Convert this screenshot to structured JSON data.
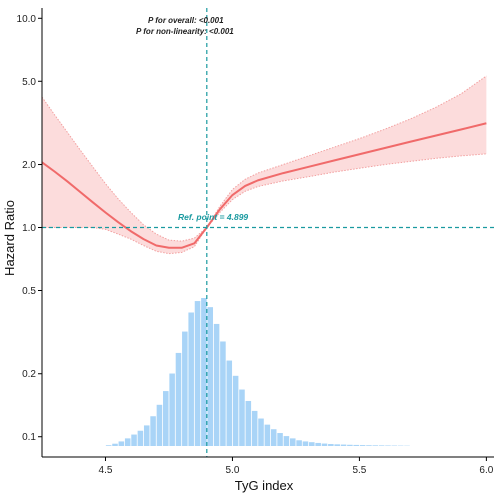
{
  "chart_data": {
    "type": "line",
    "xlabel": "TyG index",
    "ylabel": "Hazard Ratio",
    "xlim": [
      4.25,
      6.03
    ],
    "ylim": [
      0.08,
      11.2
    ],
    "y_scale": "log",
    "x_ticks": [
      4.5,
      5.0,
      5.5,
      6.0
    ],
    "x_tick_labels": [
      "4.5",
      "5.0",
      "5.5",
      "6.0"
    ],
    "y_ticks": [
      0.1,
      0.2,
      0.5,
      1.0,
      2.0,
      5.0,
      10.0
    ],
    "y_tick_labels": [
      "0.1",
      "0.2",
      "0.5",
      "1.0",
      "2.0",
      "5.0",
      "10.0"
    ],
    "annotations": {
      "p_overall": "P for overall: <0.001",
      "p_nonlinear": "P for non-linearity: <0.001",
      "ref_point": "Ref. point = 4.899"
    },
    "reference": {
      "x": 4.899,
      "y": 1.0
    },
    "colors": {
      "curve": "#f06a6a",
      "band_fill": "#fcdcdc",
      "band_edge": "#f2a0a0",
      "reference_line": "#1a9aa0",
      "histogram": "#a9d4f7"
    },
    "series": [
      {
        "x": [
          4.25,
          4.3,
          4.35,
          4.4,
          4.45,
          4.5,
          4.55,
          4.6,
          4.65,
          4.7,
          4.75,
          4.8,
          4.85,
          4.899,
          4.95,
          5.0,
          5.05,
          5.1,
          5.2,
          5.3,
          5.4,
          5.5,
          5.6,
          5.7,
          5.8,
          5.9,
          6.0
        ],
        "hr": [
          2.05,
          1.85,
          1.66,
          1.48,
          1.32,
          1.18,
          1.06,
          0.96,
          0.88,
          0.82,
          0.8,
          0.8,
          0.84,
          1.0,
          1.22,
          1.43,
          1.58,
          1.68,
          1.82,
          1.95,
          2.09,
          2.24,
          2.4,
          2.57,
          2.75,
          2.94,
          3.15
        ],
        "lower": [
          1.0,
          1.0,
          1.0,
          1.0,
          1.0,
          0.98,
          0.93,
          0.88,
          0.82,
          0.77,
          0.75,
          0.76,
          0.81,
          1.0,
          1.18,
          1.36,
          1.49,
          1.57,
          1.67,
          1.75,
          1.84,
          1.92,
          2.0,
          2.07,
          2.14,
          2.2,
          2.25
        ],
        "upper": [
          4.2,
          3.45,
          2.85,
          2.35,
          1.95,
          1.62,
          1.37,
          1.18,
          1.03,
          0.93,
          0.87,
          0.86,
          0.89,
          1.0,
          1.26,
          1.52,
          1.7,
          1.82,
          2.0,
          2.2,
          2.42,
          2.66,
          2.95,
          3.3,
          3.75,
          4.35,
          5.3
        ]
      }
    ],
    "histogram": {
      "bin_width": 0.025,
      "bin_start": [
        4.5,
        4.525,
        4.55,
        4.575,
        4.6,
        4.625,
        4.65,
        4.675,
        4.7,
        4.725,
        4.75,
        4.775,
        4.8,
        4.825,
        4.85,
        4.875,
        4.9,
        4.925,
        4.95,
        4.975,
        5.0,
        5.025,
        5.05,
        5.075,
        5.1,
        5.125,
        5.15,
        5.175,
        5.2,
        5.225,
        5.25,
        5.275,
        5.3,
        5.325,
        5.35,
        5.375,
        5.4,
        5.425,
        5.45,
        5.475,
        5.5,
        5.525,
        5.55,
        5.575,
        5.6,
        5.625,
        5.65,
        5.675
      ],
      "counts": [
        1,
        3,
        6,
        10,
        15,
        20,
        27,
        39,
        54,
        72,
        95,
        122,
        150,
        175,
        190,
        194,
        182,
        160,
        137,
        112,
        92,
        74,
        59,
        46,
        36,
        28,
        22,
        17,
        13,
        10,
        7.5,
        6,
        5,
        4,
        3.2,
        2.6,
        2.2,
        1.9,
        1.6,
        1.4,
        1.2,
        1.0,
        0.9,
        0.8,
        0.7,
        0.6,
        0.5,
        0.4
      ]
    }
  }
}
